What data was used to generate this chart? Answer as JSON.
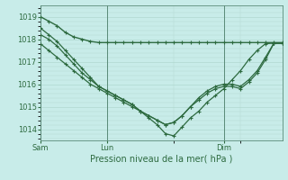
{
  "bg_color": "#c8ece9",
  "grid_color": "#b0d8d0",
  "line_color": "#2d6a3f",
  "marker_color": "#2d6a3f",
  "xlabel": "Pression niveau de la mer( hPa )",
  "ylim": [
    1013.5,
    1019.5
  ],
  "yticks": [
    1014,
    1015,
    1016,
    1017,
    1018,
    1019
  ],
  "xlim": [
    0,
    29
  ],
  "vlines_x": [
    0,
    8,
    22
  ],
  "vlines_labels": [
    "Sam",
    "Lun",
    "Dim"
  ],
  "series": [
    [
      1019.0,
      1018.8,
      1018.6,
      1018.3,
      1018.1,
      1018.0,
      1017.9,
      1017.85,
      1017.85,
      1017.85,
      1017.85,
      1017.85,
      1017.85,
      1017.85,
      1017.85,
      1017.85,
      1017.85,
      1017.85,
      1017.85,
      1017.85,
      1017.85,
      1017.85,
      1017.85,
      1017.85,
      1017.85,
      1017.85,
      1017.85,
      1017.85,
      1017.85,
      1017.85
    ],
    [
      1018.5,
      1018.2,
      1017.9,
      1017.5,
      1017.1,
      1016.7,
      1016.3,
      1015.9,
      1015.7,
      1015.5,
      1015.3,
      1015.1,
      1014.8,
      1014.5,
      1014.2,
      1013.8,
      1013.7,
      1014.1,
      1014.5,
      1014.8,
      1015.2,
      1015.5,
      1015.8,
      1016.2,
      1016.6,
      1017.1,
      1017.5,
      1017.8,
      1017.82,
      1017.82
    ],
    [
      1018.2,
      1018.0,
      1017.7,
      1017.3,
      1016.9,
      1016.5,
      1016.2,
      1015.9,
      1015.7,
      1015.5,
      1015.3,
      1015.1,
      1014.8,
      1014.6,
      1014.4,
      1014.2,
      1014.3,
      1014.6,
      1015.0,
      1015.4,
      1015.7,
      1015.9,
      1016.0,
      1016.0,
      1015.9,
      1016.2,
      1016.6,
      1017.2,
      1017.82,
      1017.82
    ],
    [
      1017.8,
      1017.5,
      1017.2,
      1016.9,
      1016.6,
      1016.3,
      1016.0,
      1015.8,
      1015.6,
      1015.4,
      1015.2,
      1015.0,
      1014.8,
      1014.6,
      1014.4,
      1014.2,
      1014.3,
      1014.6,
      1015.0,
      1015.3,
      1015.6,
      1015.8,
      1015.9,
      1015.9,
      1015.8,
      1016.1,
      1016.5,
      1017.1,
      1017.82,
      1017.82
    ]
  ],
  "title_fontsize": 7,
  "tick_fontsize": 6.0,
  "figsize": [
    3.2,
    2.0
  ],
  "dpi": 100
}
